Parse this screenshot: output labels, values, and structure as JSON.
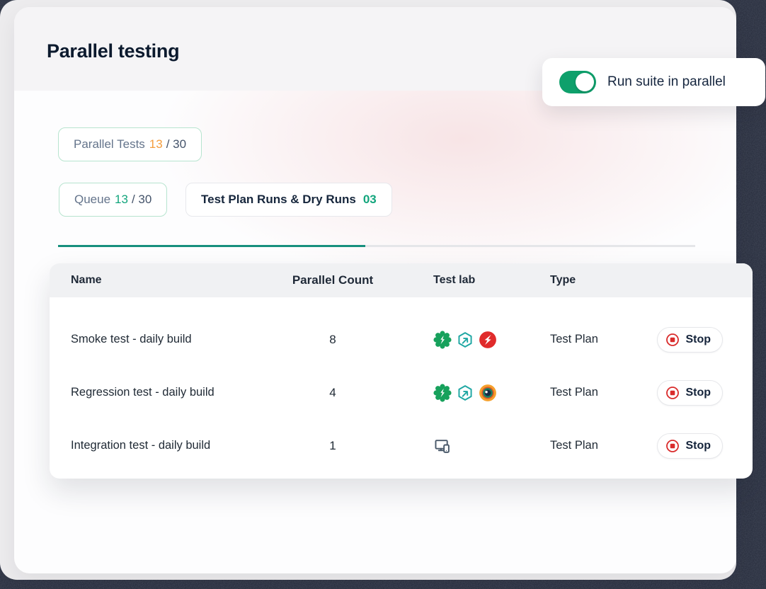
{
  "page": {
    "title": "Parallel testing"
  },
  "toggle_card": {
    "label": "Run suite in parallel",
    "state": "on"
  },
  "tabs": [
    {
      "label": "Parallel Tests",
      "count": "13",
      "suffix": "/ 30"
    },
    {
      "label": "Queue",
      "count": "13",
      "suffix": "/ 30"
    },
    {
      "label": "Test Plan Runs & Dry Runs",
      "count": "03"
    }
  ],
  "progress": {
    "filled_ratio": 0.48
  },
  "table": {
    "columns": [
      "Name",
      "Parallel Count",
      "Test lab",
      "Type"
    ],
    "rows": [
      {
        "name": "Smoke test - daily build",
        "parallel_count": "8",
        "test_lab_icons": [
          "testsigma-badge-icon",
          "hexagon-arrow-icon",
          "lightning-circle-icon"
        ],
        "type": "Test Plan",
        "action": "Stop"
      },
      {
        "name": "Regression test - daily build",
        "parallel_count": "4",
        "test_lab_icons": [
          "testsigma-badge-icon",
          "hexagon-arrow-icon",
          "eye-icon"
        ],
        "type": "Test Plan",
        "action": "Stop"
      },
      {
        "name": "Integration test - daily build",
        "parallel_count": "1",
        "test_lab_icons": [
          "devices-icon"
        ],
        "type": "Test Plan",
        "action": "Stop"
      }
    ]
  },
  "colors": {
    "toggle_green": "#0EA06B",
    "underline_teal": "#17907E",
    "count_orange": "#F49D3D",
    "count_green": "#12A57C",
    "stop_red": "#D92B2B",
    "dark_edge": "#232838",
    "title_text": "#0C1A2E",
    "muted_text": "#64748B",
    "dark_text": "#1F2937"
  }
}
